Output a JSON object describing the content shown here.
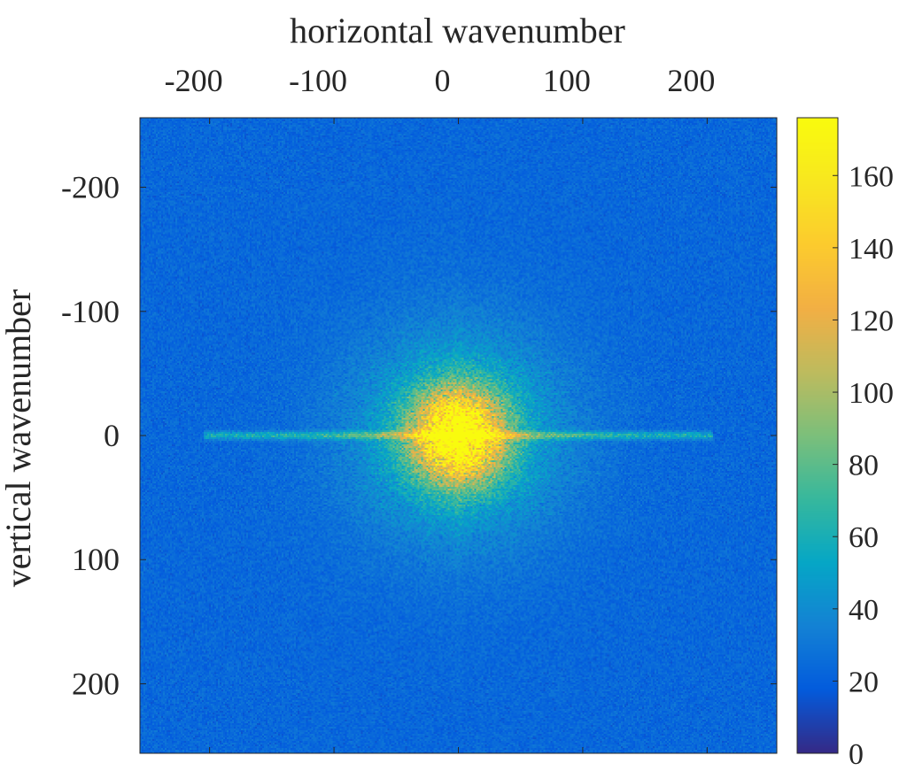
{
  "chart_data": {
    "type": "heatmap",
    "title": "",
    "xlabel": "horizontal wavenumber",
    "ylabel": "vertical wavenumber",
    "xlim": [
      -256,
      256
    ],
    "ylim": [
      -256,
      256
    ],
    "y_direction": "reversed",
    "x_axis_location": "top",
    "x_ticks": [
      -200,
      -100,
      0,
      100,
      200
    ],
    "x_tick_labels": [
      "-200",
      "-100",
      "0",
      "100",
      "200"
    ],
    "y_ticks": [
      -200,
      -100,
      0,
      100,
      200
    ],
    "y_tick_labels": [
      "-200",
      "-100",
      "0",
      "100",
      "200"
    ],
    "colormap": "parula",
    "color_range": [
      0,
      176
    ],
    "colorbar_ticks": [
      0,
      20,
      40,
      60,
      80,
      100,
      120,
      140,
      160
    ],
    "colorbar_tick_labels": [
      "0",
      "20",
      "40",
      "60",
      "80",
      "100",
      "120",
      "140",
      "160"
    ],
    "background_level": 20,
    "features": {
      "central_peak": {
        "x": 0,
        "y": 0,
        "peak_value": 176,
        "core_radius": 25
      },
      "horizontal_streak": {
        "y": 0,
        "x_extent": [
          -200,
          200
        ],
        "peak_value": 75
      }
    },
    "grid": false,
    "legend": "none"
  }
}
